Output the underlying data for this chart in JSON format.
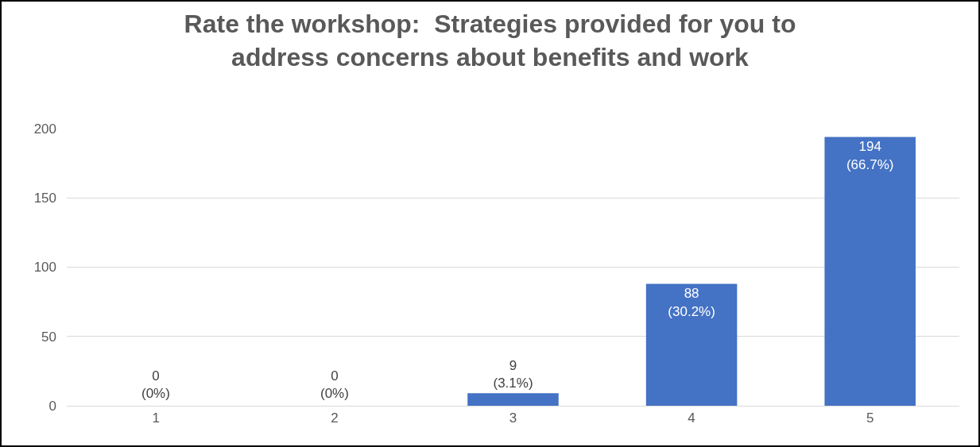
{
  "chart_data": {
    "type": "bar",
    "title": "Rate the workshop:  Strategies provided for you to\naddress concerns about benefits and work",
    "categories": [
      "1",
      "2",
      "3",
      "4",
      "5"
    ],
    "values": [
      0,
      0,
      9,
      88,
      194
    ],
    "value_labels": [
      "0\n(0%)",
      "0\n(0%)",
      "9\n(3.1%)",
      "88\n(30.2%)",
      "194\n(66.7%)"
    ],
    "color": "#4472c4",
    "ylim": [
      0,
      200
    ],
    "yticks": [
      0,
      50,
      100,
      150,
      200
    ],
    "grid": "y"
  }
}
